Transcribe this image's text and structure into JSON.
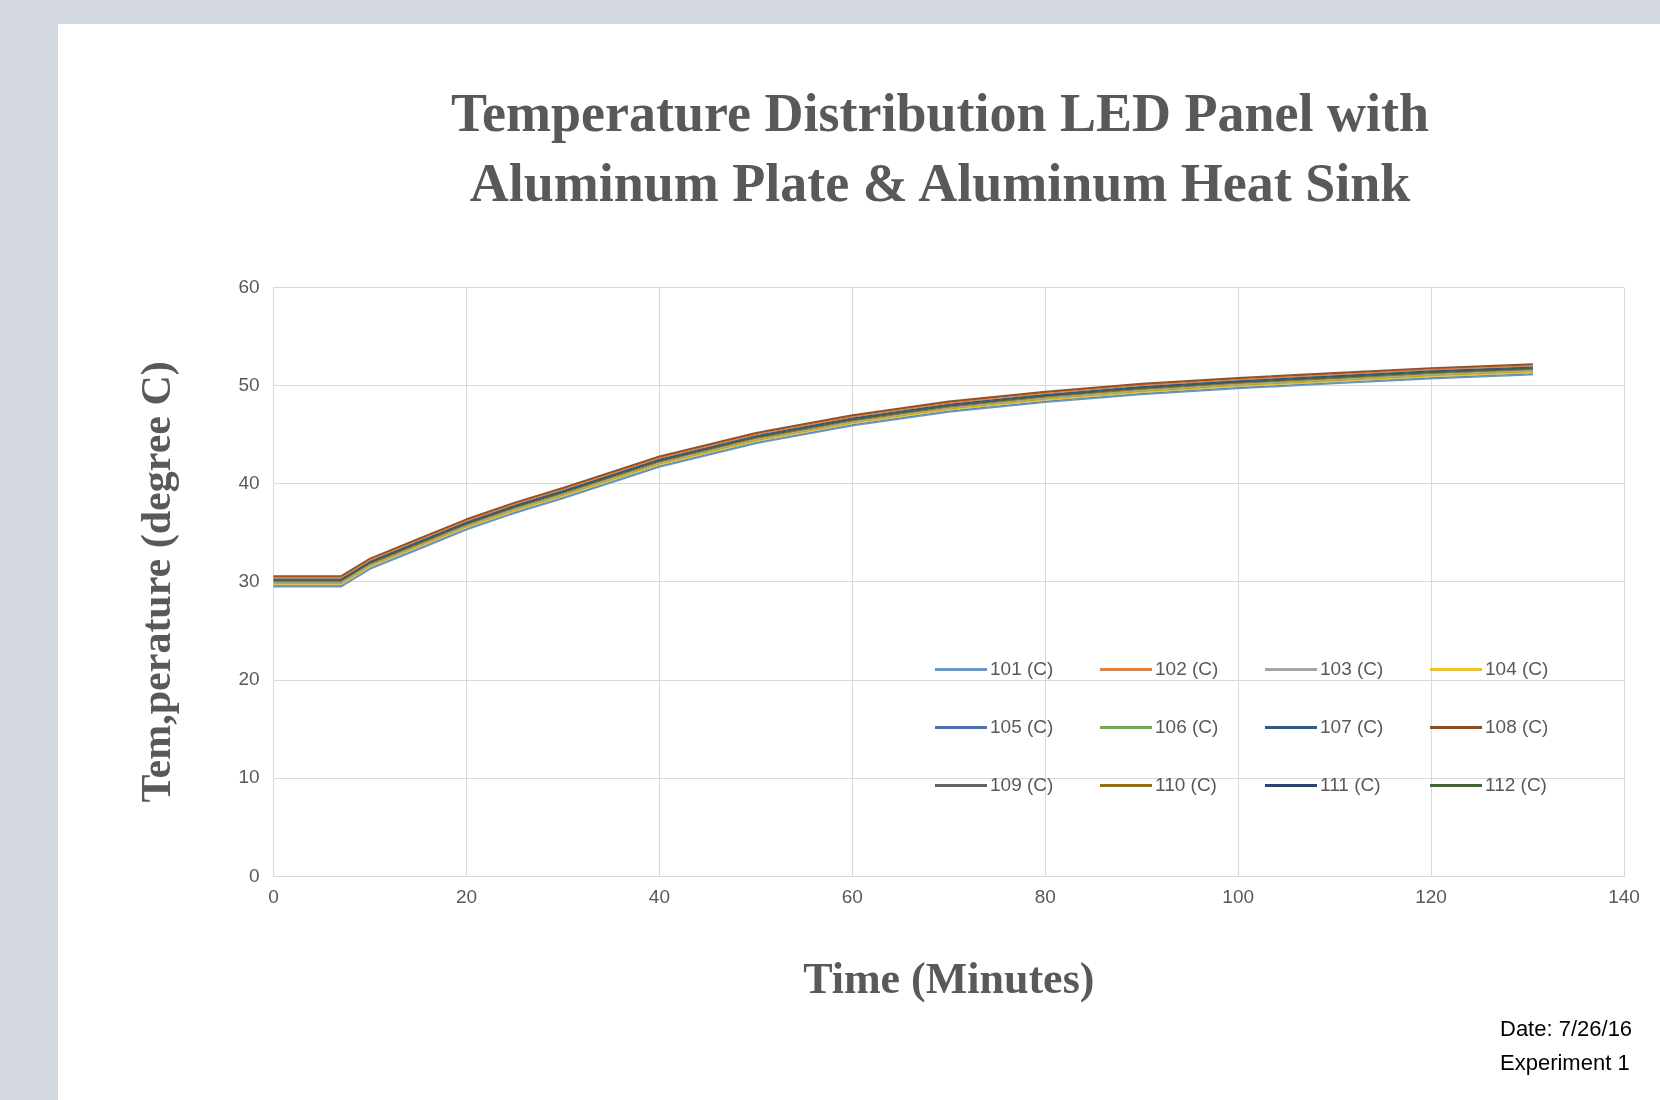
{
  "chart_data": {
    "type": "line",
    "title": "Temperature Distribution LED Panel with Aluminum Plate & Aluminum Heat Sink",
    "xlabel": "Time (Minutes)",
    "ylabel": "Tem,perature (degree C)",
    "annotations": [
      "Date: 7/26/16",
      "Experiment 1"
    ],
    "x": [
      0,
      7,
      10,
      15,
      20,
      25,
      30,
      40,
      50,
      60,
      70,
      80,
      90,
      100,
      110,
      120,
      130.5
    ],
    "series": [
      {
        "name": "101 (C)",
        "color": "#5b9bd5",
        "values": [
          29.5,
          29.5,
          31.3,
          33.3,
          35.3,
          37.0,
          38.5,
          41.7,
          44.1,
          45.9,
          47.3,
          48.3,
          49.1,
          49.7,
          50.2,
          50.7,
          51.1
        ]
      },
      {
        "name": "102 (C)",
        "color": "#ed7d31",
        "values": [
          30.4,
          30.4,
          32.2,
          34.2,
          36.2,
          37.9,
          39.4,
          42.6,
          45.0,
          46.8,
          48.2,
          49.2,
          50.0,
          50.6,
          51.1,
          51.6,
          52.0
        ]
      },
      {
        "name": "103 (C)",
        "color": "#a5a5a5",
        "values": [
          29.9,
          29.9,
          31.7,
          33.7,
          35.7,
          37.4,
          38.9,
          42.1,
          44.5,
          46.3,
          47.7,
          48.7,
          49.5,
          50.1,
          50.6,
          51.1,
          51.5
        ]
      },
      {
        "name": "104 (C)",
        "color": "#ffc000",
        "values": [
          29.7,
          29.7,
          31.5,
          33.5,
          35.5,
          37.2,
          38.7,
          41.9,
          44.3,
          46.1,
          47.5,
          48.5,
          49.3,
          49.9,
          50.4,
          50.9,
          51.3
        ]
      },
      {
        "name": "105 (C)",
        "color": "#4472c4",
        "values": [
          29.6,
          29.6,
          31.4,
          33.4,
          35.4,
          37.1,
          38.6,
          41.8,
          44.2,
          46.0,
          47.4,
          48.4,
          49.2,
          49.8,
          50.3,
          50.8,
          51.2
        ]
      },
      {
        "name": "106 (C)",
        "color": "#70ad47",
        "values": [
          29.8,
          29.8,
          31.6,
          33.6,
          35.6,
          37.3,
          38.8,
          42.0,
          44.4,
          46.2,
          47.6,
          48.6,
          49.4,
          50.0,
          50.5,
          51.0,
          51.4
        ]
      },
      {
        "name": "107 (C)",
        "color": "#255e91",
        "values": [
          30.2,
          30.2,
          32.0,
          34.0,
          36.0,
          37.7,
          39.2,
          42.4,
          44.8,
          46.6,
          48.0,
          49.0,
          49.8,
          50.4,
          50.9,
          51.4,
          51.8
        ]
      },
      {
        "name": "108 (C)",
        "color": "#9e480e",
        "values": [
          30.5,
          30.5,
          32.3,
          34.3,
          36.3,
          38.0,
          39.5,
          42.7,
          45.1,
          46.9,
          48.3,
          49.3,
          50.1,
          50.7,
          51.2,
          51.7,
          52.1
        ]
      },
      {
        "name": "109 (C)",
        "color": "#636363",
        "values": [
          30.6,
          30.6,
          32.4,
          34.4,
          36.4,
          38.1,
          39.6,
          42.8,
          45.2,
          47.0,
          48.4,
          49.4,
          50.2,
          50.8,
          51.3,
          51.8,
          52.2
        ]
      },
      {
        "name": "110 (C)",
        "color": "#997300",
        "values": [
          30.0,
          30.0,
          31.8,
          33.8,
          35.8,
          37.5,
          39.0,
          42.2,
          44.6,
          46.4,
          47.8,
          48.8,
          49.6,
          50.2,
          50.7,
          51.2,
          51.6
        ]
      },
      {
        "name": "111 (C)",
        "color": "#264478",
        "values": [
          30.3,
          30.3,
          32.1,
          34.1,
          36.1,
          37.8,
          39.3,
          42.5,
          44.9,
          46.7,
          48.1,
          49.1,
          49.9,
          50.5,
          51.0,
          51.5,
          51.9
        ]
      },
      {
        "name": "112 (C)",
        "color": "#43682b",
        "values": [
          30.1,
          30.1,
          31.9,
          33.9,
          35.9,
          37.6,
          39.1,
          42.3,
          44.7,
          46.5,
          47.9,
          48.9,
          49.7,
          50.3,
          50.8,
          51.3,
          51.7
        ]
      }
    ],
    "xlim": [
      0,
      140
    ],
    "xticks": [
      0,
      20,
      40,
      60,
      80,
      100,
      120,
      140
    ],
    "ylim": [
      0,
      60
    ],
    "yticks": [
      0,
      10,
      20,
      30,
      40,
      50,
      60
    ],
    "grid": true,
    "legend": "bottom right",
    "marker": "none",
    "line_style": "solid"
  }
}
